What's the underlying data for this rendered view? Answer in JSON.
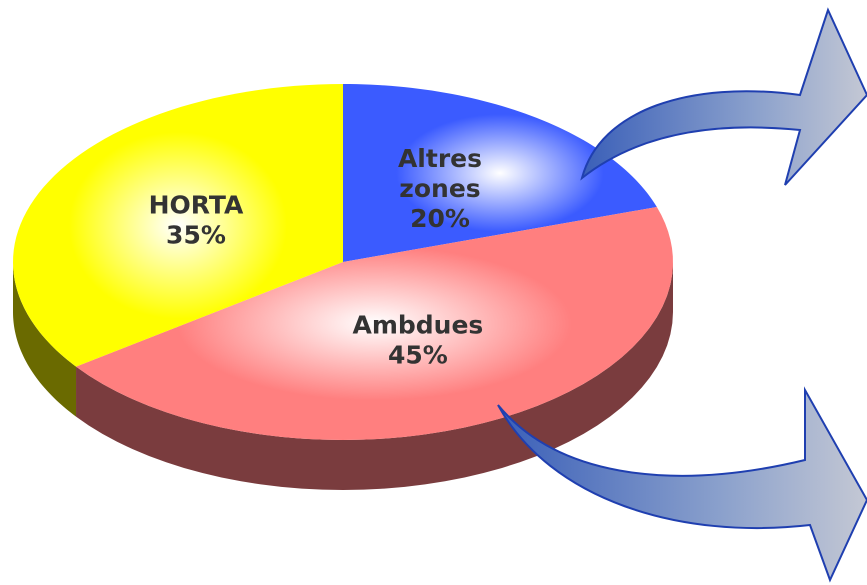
{
  "chart_data": {
    "type": "pie3d",
    "categories": [
      "Altres zones",
      "Ambdues",
      "HORTA"
    ],
    "values": [
      20,
      45,
      35
    ],
    "value_labels": [
      "20%",
      "45%",
      "35%"
    ],
    "colors": [
      "#3b5bff",
      "#ff7f7f",
      "#ffff00"
    ],
    "side_colors": [
      "#22339a",
      "#7a3c3e",
      "#6a6a00"
    ]
  }
}
